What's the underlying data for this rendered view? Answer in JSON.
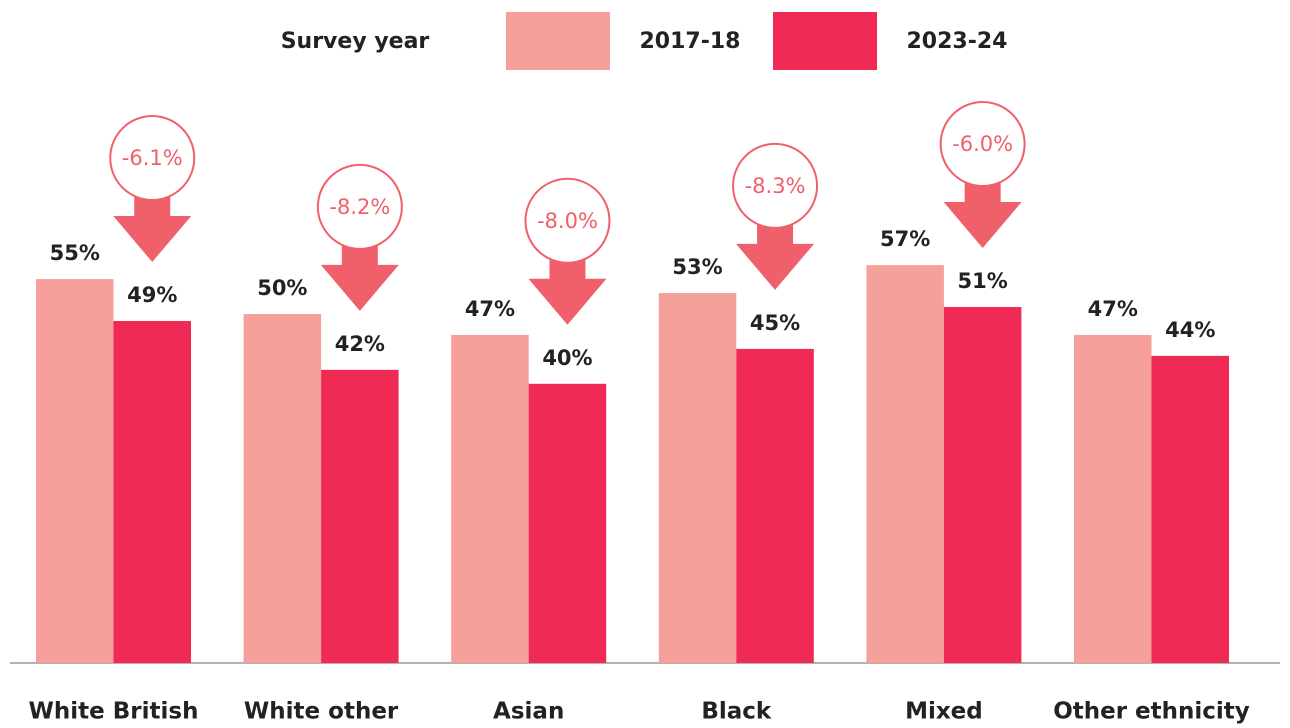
{
  "chart_data": {
    "type": "bar",
    "legend_title": "Survey year",
    "categories": [
      "White British",
      "White other",
      "Asian",
      "Black",
      "Mixed",
      "Other ethnicity"
    ],
    "series": [
      {
        "name": "2017-18",
        "color": "#f5a09a",
        "values": [
          55,
          50,
          47,
          53,
          57,
          47
        ],
        "value_labels": [
          "55%",
          "50%",
          "47%",
          "53%",
          "57%",
          "47%"
        ]
      },
      {
        "name": "2023-24",
        "color": "#ef2a55",
        "values": [
          49,
          42,
          40,
          45,
          51,
          44
        ],
        "value_labels": [
          "49%",
          "42%",
          "40%",
          "45%",
          "51%",
          "44%"
        ]
      }
    ],
    "changes": [
      -6.1,
      -8.2,
      -8,
      -8.3,
      -6,
      null
    ],
    "change_labels": [
      "-6.1%",
      "-8.2%",
      "-8.0%",
      "-8.3%",
      "-6.0%",
      null
    ],
    "change_color": "#f0606a"
  }
}
